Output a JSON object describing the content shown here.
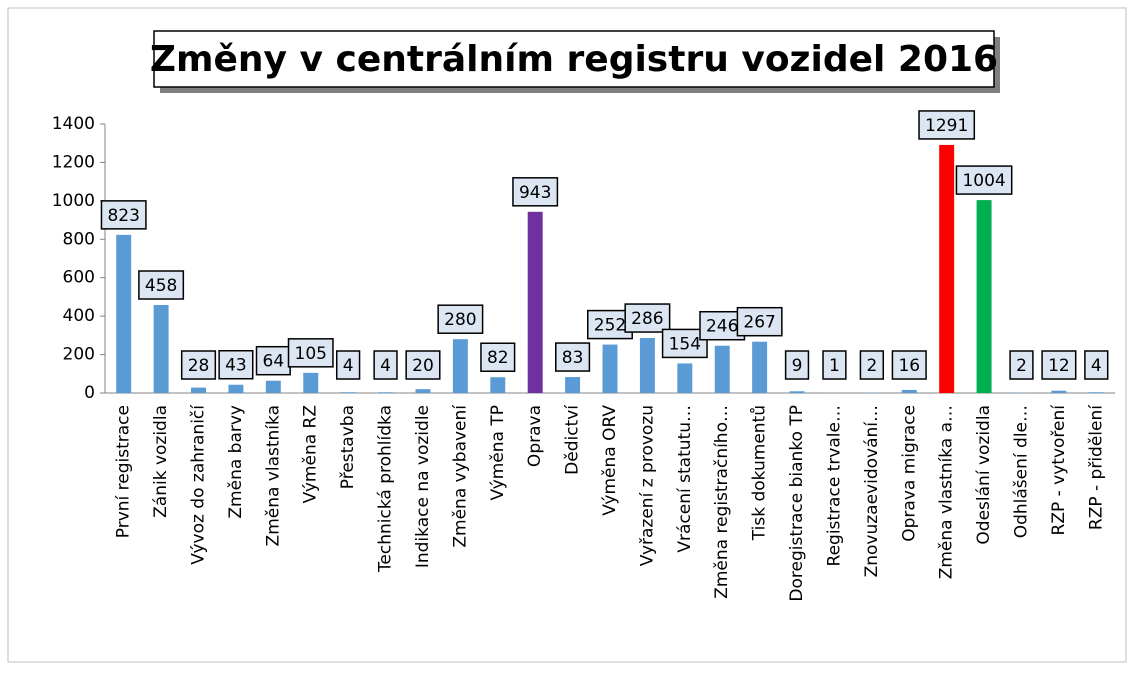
{
  "chart_data": {
    "type": "bar",
    "title": "Změny v centrálním registru vozidel 2016",
    "categories": [
      "První registrace",
      "Zánik vozidla",
      "Vývoz do zahraničí",
      "Změna barvy",
      "Změna vlastníka",
      "Výměna RZ",
      "Přestavba",
      "Technická prohlídka",
      "Indikace na vozidle",
      "Změna vybavení",
      "Výměna TP",
      "Oprava",
      "Dědictví",
      "Výměna ORV",
      "Vyřazení z provozu",
      "Vrácení statutu…",
      "Změna registračního…",
      "Tisk dokumentů",
      "Doregistrace bianko TP",
      "Registrace trvale…",
      "Znovuzaevidování…",
      "Oprava migrace",
      "Změna vlastníka a…",
      "Odeslání vozidla",
      "Odhlášení dle…",
      "RZP - vytvoření",
      "RZP - přidělení"
    ],
    "values": [
      823,
      458,
      28,
      43,
      64,
      105,
      4,
      4,
      20,
      280,
      82,
      943,
      83,
      252,
      286,
      154,
      246,
      267,
      9,
      1,
      2,
      16,
      1291,
      1004,
      2,
      12,
      4
    ],
    "colors": [
      "#5b9bd5",
      "#5b9bd5",
      "#5b9bd5",
      "#5b9bd5",
      "#5b9bd5",
      "#5b9bd5",
      "#5b9bd5",
      "#5b9bd5",
      "#5b9bd5",
      "#5b9bd5",
      "#5b9bd5",
      "#7030a0",
      "#5b9bd5",
      "#5b9bd5",
      "#5b9bd5",
      "#5b9bd5",
      "#5b9bd5",
      "#5b9bd5",
      "#5b9bd5",
      "#5b9bd5",
      "#5b9bd5",
      "#5b9bd5",
      "#ff0000",
      "#00b050",
      "#5b9bd5",
      "#5b9bd5",
      "#5b9bd5"
    ],
    "ylim": [
      0,
      1400
    ],
    "yticks": [
      0,
      200,
      400,
      600,
      800,
      1000,
      1200,
      1400
    ],
    "grid": false
  }
}
